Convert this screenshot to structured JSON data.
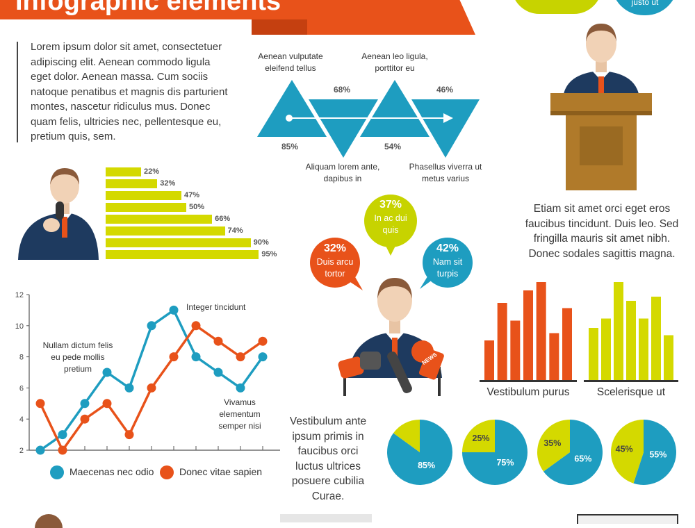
{
  "header": {
    "title": "Infographic elements",
    "bubble_text": "justo ut"
  },
  "intro": {
    "paragraph": "Lorem ipsum dolor sit amet, consectetuer adipiscing elit. Aenean commodo ligula eget dolor. Aenean massa. Cum sociis natoque penatibus et magnis dis parturient montes, nascetur ridiculus mus. Donec quam felis, ultricies nec, pellentesque eu, pretium quis, sem."
  },
  "triangles": {
    "top_labels": [
      "Aenean vulputate eleifend tellus",
      "Aenean leo ligula, porttitor eu"
    ],
    "bottom_labels": [
      "Aliquam lorem ante, dapibus in",
      "Phasellus viverra ut metus varius"
    ],
    "percents": [
      "85%",
      "68%",
      "54%",
      "46%"
    ]
  },
  "podium": {
    "paragraph": "Etiam sit amet orci eget eros faucibus tincidunt. Duis leo. Sed fringilla mauris sit amet nibh. Donec sodales sagittis magna."
  },
  "hbar_chart": {
    "type": "bar",
    "orientation": "horizontal",
    "values": [
      22,
      32,
      47,
      50,
      66,
      74,
      90,
      95
    ],
    "labels": [
      "22%",
      "32%",
      "47%",
      "50%",
      "66%",
      "74%",
      "90%",
      "95%"
    ],
    "color": "#d4d900"
  },
  "bubbles": [
    {
      "pct": "32%",
      "text": "Duis arcu tortor",
      "color": "#e8521a"
    },
    {
      "pct": "37%",
      "text": "In ac dui quis",
      "color": "#c7d300"
    },
    {
      "pct": "42%",
      "text": "Nam sit turpis",
      "color": "#1e9dc0"
    }
  ],
  "mic_badge": "NEWS",
  "chart_data": [
    {
      "type": "line",
      "x": [
        1,
        2,
        3,
        4,
        5,
        6,
        7,
        8,
        9,
        10,
        11
      ],
      "series": [
        {
          "name": "Maecenas nec odio",
          "color": "#1e9dc0",
          "values": [
            2,
            3,
            5,
            7,
            6,
            10,
            11,
            8,
            7,
            6,
            8
          ]
        },
        {
          "name": "Donec vitae sapien",
          "color": "#e8521a",
          "values": [
            5,
            2,
            4,
            5,
            3,
            6,
            8,
            10,
            9,
            8,
            9
          ]
        }
      ],
      "ylim": [
        2,
        12
      ],
      "yticks": [
        2,
        4,
        6,
        8,
        10,
        12
      ],
      "annotations": [
        "Nullam dictum felis eu pede mollis pretium",
        "Integer tincidunt",
        "Vivamus elementum semper nisi"
      ],
      "legend": "bottom"
    },
    {
      "type": "bar",
      "title": "Vestibulum purus",
      "color": "#e8521a",
      "values": [
        38,
        74,
        57,
        86,
        94,
        45,
        69
      ]
    },
    {
      "type": "bar",
      "title": "Scelerisque ut",
      "color": "#d4d900",
      "values": [
        50,
        59,
        94,
        76,
        59,
        80,
        43
      ]
    },
    {
      "type": "pie",
      "slices": [
        {
          "label": "85%",
          "value": 85,
          "color": "#1e9dc0"
        },
        {
          "label": "15%",
          "value": 15,
          "color": "#d4d900"
        }
      ],
      "show_labels": [
        "85%"
      ]
    },
    {
      "type": "pie",
      "slices": [
        {
          "label": "75%",
          "value": 75,
          "color": "#1e9dc0"
        },
        {
          "label": "25%",
          "value": 25,
          "color": "#d4d900"
        }
      ]
    },
    {
      "type": "pie",
      "slices": [
        {
          "label": "65%",
          "value": 65,
          "color": "#1e9dc0"
        },
        {
          "label": "35%",
          "value": 35,
          "color": "#d4d900"
        }
      ]
    },
    {
      "type": "pie",
      "slices": [
        {
          "label": "55%",
          "value": 55,
          "color": "#1e9dc0"
        },
        {
          "label": "45%",
          "value": 45,
          "color": "#d4d900"
        }
      ]
    }
  ],
  "bottom_text": {
    "paragraph": "Vestibulum ante ipsum primis in faucibus orci luctus ultrices posuere cubilia Curae."
  },
  "colors": {
    "blue": "#1e9dc0",
    "orange": "#e8521a",
    "lime": "#d4d900",
    "navy": "#1e3a5f",
    "wood": "#b07a2a"
  }
}
